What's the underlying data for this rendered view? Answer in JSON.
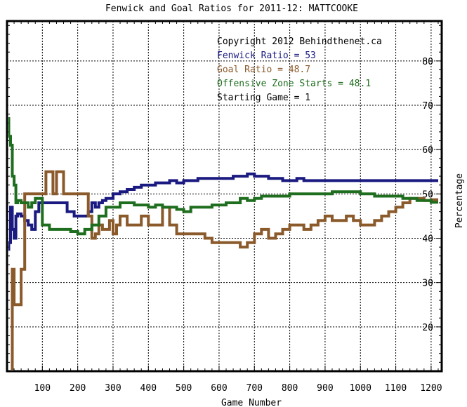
{
  "chart_data": {
    "type": "line",
    "title": "Fenwick and Goal Ratios for 2011-12: MATTCOOKE",
    "xlabel": "Game Number",
    "ylabel": "Percentage",
    "xlim": [
      0,
      1230
    ],
    "ylim": [
      10,
      89
    ],
    "xticks": [
      100,
      200,
      300,
      400,
      500,
      600,
      700,
      800,
      900,
      1000,
      1100,
      1200
    ],
    "yticks": [
      20,
      30,
      40,
      50,
      60,
      70,
      80
    ],
    "grid": true,
    "legend_position": "top-right",
    "annotations": [
      {
        "text": "Copyright 2012 Behindthenet.ca",
        "color": "#000000"
      },
      {
        "text": "Fenwick Ratio = 53",
        "color": "#1a1a80"
      },
      {
        "text": "Goal Ratio = 48.7",
        "color": "#8b5a2b"
      },
      {
        "text": "Offensive Zone Starts = 48.1",
        "color": "#1f6e1f"
      },
      {
        "text": "Starting Game = 1",
        "color": "#000000"
      }
    ],
    "series": [
      {
        "color": "#1a1a80",
        "x": [
          0,
          5,
          10,
          15,
          20,
          25,
          30,
          40,
          50,
          60,
          70,
          80,
          90,
          100,
          110,
          120,
          130,
          150,
          170,
          190,
          200,
          210,
          220,
          230,
          240,
          250,
          260,
          270,
          280,
          300,
          320,
          340,
          360,
          380,
          400,
          420,
          440,
          460,
          480,
          500,
          520,
          540,
          560,
          580,
          600,
          620,
          640,
          660,
          680,
          700,
          720,
          740,
          760,
          780,
          800,
          820,
          840,
          860,
          880,
          900,
          920,
          940,
          960,
          980,
          1000,
          1020,
          1040,
          1060,
          1080,
          1100,
          1120,
          1140,
          1160,
          1180,
          1200,
          1220
        ],
        "values": [
          37.5,
          39,
          47,
          42,
          40,
          45,
          45.5,
          45,
          44,
          43,
          42,
          46,
          48,
          48,
          48,
          48,
          48,
          48,
          46,
          45,
          45,
          45,
          45,
          46,
          48,
          47,
          48,
          48.5,
          49,
          50,
          50.5,
          51,
          51.5,
          52,
          52,
          52.5,
          52.5,
          53,
          52.5,
          53,
          53,
          53.5,
          53.5,
          53.5,
          53.5,
          53.5,
          54,
          54,
          54.5,
          54,
          54,
          53.5,
          53.5,
          53,
          53,
          53.5,
          53,
          53,
          53,
          53,
          53,
          53,
          53,
          53,
          53,
          53,
          53,
          53,
          53,
          53,
          53,
          53,
          53,
          53,
          53,
          53
        ]
      },
      {
        "color": "#8b5a2b",
        "x": [
          0,
          10,
          15,
          20,
          25,
          30,
          40,
          50,
          55,
          60,
          70,
          80,
          100,
          110,
          120,
          130,
          140,
          150,
          160,
          170,
          180,
          190,
          200,
          210,
          220,
          230,
          240,
          250,
          260,
          270,
          280,
          290,
          300,
          310,
          320,
          340,
          360,
          380,
          400,
          420,
          440,
          460,
          480,
          500,
          520,
          540,
          560,
          580,
          600,
          620,
          640,
          660,
          680,
          700,
          720,
          740,
          760,
          780,
          800,
          820,
          840,
          860,
          880,
          900,
          920,
          940,
          960,
          980,
          1000,
          1020,
          1040,
          1060,
          1080,
          1100,
          1120,
          1140,
          1160,
          1180,
          1200,
          1220
        ],
        "values": [
          7,
          10,
          33,
          25,
          25,
          25,
          33,
          50,
          50,
          50,
          50,
          50,
          50,
          55,
          55,
          50,
          55,
          55,
          50,
          50,
          50,
          50,
          50,
          50,
          50,
          45,
          40,
          41,
          43,
          42,
          42,
          44,
          41,
          43,
          45,
          43,
          43,
          45,
          43,
          43,
          47,
          43,
          41,
          41,
          41,
          41,
          40,
          39,
          39,
          39,
          39,
          38,
          39,
          41,
          42,
          40,
          41,
          42,
          43,
          43,
          42,
          43,
          44,
          45,
          44,
          44,
          45,
          44,
          43,
          43,
          44,
          45,
          46,
          47,
          48,
          49,
          49,
          48.5,
          48.7,
          48.7
        ]
      },
      {
        "color": "#1f6e1f",
        "x": [
          0,
          5,
          10,
          15,
          20,
          25,
          30,
          40,
          50,
          60,
          70,
          80,
          100,
          120,
          150,
          180,
          200,
          220,
          240,
          260,
          280,
          300,
          320,
          340,
          360,
          380,
          400,
          420,
          440,
          460,
          480,
          500,
          520,
          540,
          560,
          580,
          600,
          620,
          640,
          660,
          680,
          700,
          720,
          740,
          760,
          780,
          800,
          820,
          840,
          860,
          880,
          900,
          920,
          940,
          960,
          980,
          1000,
          1020,
          1040,
          1060,
          1080,
          1100,
          1120,
          1140,
          1160,
          1180,
          1200,
          1220
        ],
        "values": [
          67,
          63,
          61,
          54,
          52,
          48,
          48.5,
          48,
          48,
          47,
          48,
          49,
          43,
          42,
          42,
          41.5,
          41,
          42,
          43,
          45,
          47,
          47,
          48,
          48,
          47.5,
          47.5,
          47,
          47.5,
          47,
          47,
          46.5,
          46,
          47,
          47,
          47,
          47.5,
          47.5,
          48,
          48,
          49,
          48.5,
          49,
          49.5,
          49.5,
          49.5,
          49.5,
          50,
          50,
          50,
          50,
          50,
          50,
          50.5,
          50.5,
          50.5,
          50.5,
          50,
          50,
          49.5,
          49.5,
          49.5,
          49.5,
          49,
          49,
          48.5,
          48.5,
          48.1,
          48.1
        ]
      }
    ]
  }
}
